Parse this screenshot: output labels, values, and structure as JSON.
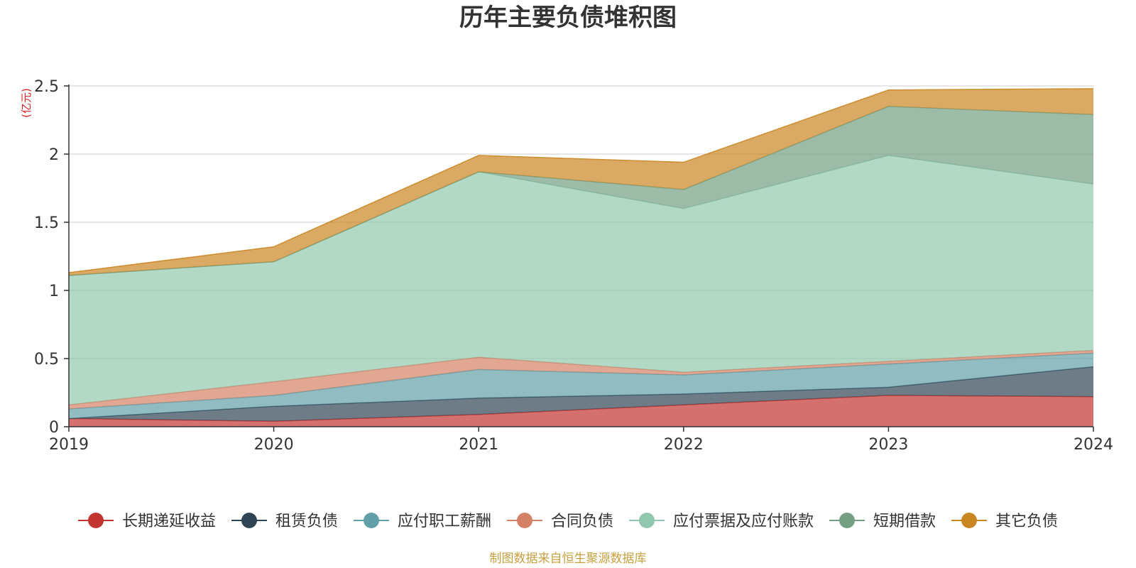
{
  "chart_data": {
    "type": "area",
    "stacked": true,
    "title": "历年主要负债堆积图",
    "unit": "(亿元)",
    "x": [
      "2019",
      "2020",
      "2021",
      "2022",
      "2023",
      "2024"
    ],
    "ylim": [
      0,
      2.5
    ],
    "yticks": [
      {
        "value": 0,
        "label": "0"
      },
      {
        "value": 0.5,
        "label": "0.5"
      },
      {
        "value": 1,
        "label": "1"
      },
      {
        "value": 1.5,
        "label": "1.5"
      },
      {
        "value": 2,
        "label": "2"
      },
      {
        "value": 2.5,
        "label": "2.5"
      }
    ],
    "grid": true,
    "legend_position": "bottom",
    "series": [
      {
        "name": "长期递延收益",
        "color": "#c23531",
        "values": [
          0.06,
          0.04,
          0.09,
          0.16,
          0.23,
          0.22
        ]
      },
      {
        "name": "租赁负债",
        "color": "#2f4554",
        "values": [
          0.0,
          0.11,
          0.12,
          0.08,
          0.06,
          0.22
        ]
      },
      {
        "name": "应付职工薪酬",
        "color": "#61a0a8",
        "values": [
          0.07,
          0.08,
          0.21,
          0.14,
          0.17,
          0.1
        ]
      },
      {
        "name": "合同负债",
        "color": "#d48265",
        "values": [
          0.03,
          0.1,
          0.09,
          0.02,
          0.02,
          0.02
        ]
      },
      {
        "name": "应付票据及应付账款",
        "color": "#91c7ae",
        "values": [
          0.95,
          0.88,
          1.36,
          1.2,
          1.51,
          1.22
        ]
      },
      {
        "name": "短期借款",
        "color": "#749f83",
        "values": [
          0.0,
          0.0,
          0.0,
          0.14,
          0.36,
          0.51
        ]
      },
      {
        "name": "其它负债",
        "color": "#ca8622",
        "values": [
          0.02,
          0.11,
          0.12,
          0.2,
          0.12,
          0.19
        ]
      }
    ]
  },
  "footer": {
    "source": "制图数据来自恒生聚源数据库"
  }
}
